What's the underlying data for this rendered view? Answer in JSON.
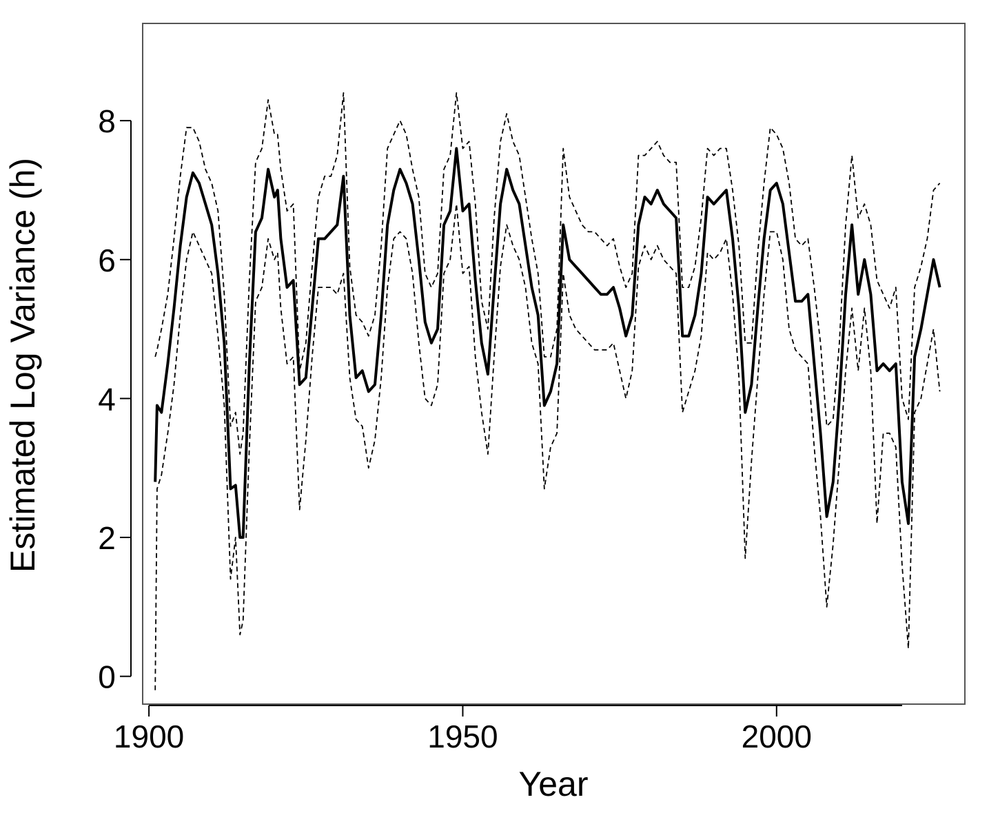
{
  "chart_data": {
    "type": "line",
    "title": "",
    "xlabel": "Year",
    "ylabel": "Estimated Log Variance (h)",
    "xlim": [
      1899,
      2030
    ],
    "ylim": [
      -0.4,
      9.4
    ],
    "xticks": [
      1900,
      1950,
      2000
    ],
    "yticks": [
      0,
      2,
      4,
      6,
      8
    ],
    "grid": false,
    "legend": "none",
    "colors": {
      "line": "#000000",
      "axis": "#000000",
      "frame": "#555555"
    },
    "series": [
      {
        "style": "solid-thick",
        "x": [
          1901,
          1901.3,
          1902,
          1903,
          1904,
          1905,
          1906,
          1907,
          1908,
          1909,
          1910,
          1911,
          1912,
          1913,
          1913.8,
          1914.5,
          1915,
          1916,
          1917,
          1918,
          1919,
          1920,
          1920.5,
          1921,
          1922,
          1923,
          1924,
          1925,
          1926,
          1927,
          1928,
          1929,
          1930,
          1931,
          1932,
          1933,
          1934,
          1935,
          1936,
          1937,
          1938,
          1939,
          1940,
          1941,
          1942,
          1943,
          1944,
          1945,
          1946,
          1947,
          1948,
          1949,
          1950,
          1951,
          1952,
          1953,
          1954,
          1955,
          1956,
          1957,
          1958,
          1959,
          1960,
          1961,
          1962,
          1963,
          1964,
          1965,
          1966,
          1967,
          1968,
          1969,
          1970,
          1971,
          1972,
          1973,
          1974,
          1975,
          1976,
          1977,
          1978,
          1979,
          1980,
          1981,
          1982,
          1983,
          1984,
          1985,
          1986,
          1987,
          1988,
          1989,
          1990,
          1991,
          1992,
          1993,
          1994,
          1995,
          1996,
          1997,
          1998,
          1999,
          2000,
          2001,
          2002,
          2003,
          2004,
          2005,
          2006,
          2007,
          2008,
          2009,
          2010,
          2011,
          2012,
          2013,
          2014,
          2015,
          2016,
          2017,
          2018,
          2019,
          2020,
          2021,
          2022,
          2023,
          2024,
          2025,
          2026
        ],
        "values": [
          2.8,
          3.9,
          3.8,
          4.5,
          5.3,
          6.2,
          6.9,
          7.25,
          7.1,
          6.8,
          6.5,
          5.8,
          4.8,
          2.7,
          2.75,
          2.0,
          2.0,
          4.5,
          6.4,
          6.6,
          7.3,
          6.9,
          7.0,
          6.3,
          5.6,
          5.7,
          4.2,
          4.3,
          5.3,
          6.3,
          6.3,
          6.4,
          6.5,
          7.2,
          5.2,
          4.3,
          4.4,
          4.1,
          4.2,
          5.2,
          6.5,
          7.0,
          7.3,
          7.1,
          6.8,
          6.0,
          5.1,
          4.8,
          5.0,
          6.5,
          6.7,
          7.6,
          6.7,
          6.8,
          5.7,
          4.8,
          4.35,
          5.6,
          6.8,
          7.3,
          7.0,
          6.8,
          6.2,
          5.6,
          5.2,
          3.9,
          4.1,
          4.5,
          6.5,
          6.0,
          5.9,
          5.8,
          5.7,
          5.6,
          5.5,
          5.5,
          5.6,
          5.3,
          4.9,
          5.2,
          6.5,
          6.9,
          6.8,
          7.0,
          6.8,
          6.7,
          6.6,
          4.9,
          4.9,
          5.2,
          5.8,
          6.9,
          6.8,
          6.9,
          7.0,
          6.3,
          5.3,
          3.8,
          4.2,
          5.3,
          6.3,
          7.0,
          7.1,
          6.8,
          6.1,
          5.4,
          5.4,
          5.5,
          4.5,
          3.5,
          2.3,
          2.8,
          4.0,
          5.5,
          6.5,
          5.5,
          6.0,
          5.5,
          4.4,
          4.5,
          4.4,
          4.5,
          2.8,
          2.2,
          4.6,
          5.0,
          5.5,
          6.0,
          5.6
        ]
      },
      {
        "style": "dashed-upper",
        "x": [
          1901,
          1901.3,
          1902,
          1903,
          1904,
          1905,
          1906,
          1907,
          1908,
          1909,
          1910,
          1911,
          1912,
          1913,
          1913.8,
          1914.5,
          1915,
          1916,
          1917,
          1918,
          1919,
          1920,
          1920.5,
          1921,
          1922,
          1923,
          1924,
          1925,
          1926,
          1927,
          1928,
          1929,
          1930,
          1931,
          1932,
          1933,
          1934,
          1935,
          1936,
          1937,
          1938,
          1939,
          1940,
          1941,
          1942,
          1943,
          1944,
          1945,
          1946,
          1947,
          1948,
          1949,
          1950,
          1951,
          1952,
          1953,
          1954,
          1955,
          1956,
          1957,
          1958,
          1959,
          1960,
          1961,
          1962,
          1963,
          1964,
          1965,
          1966,
          1967,
          1968,
          1969,
          1970,
          1971,
          1972,
          1973,
          1974,
          1975,
          1976,
          1977,
          1978,
          1979,
          1980,
          1981,
          1982,
          1983,
          1984,
          1985,
          1986,
          1987,
          1988,
          1989,
          1990,
          1991,
          1992,
          1993,
          1994,
          1995,
          1996,
          1997,
          1998,
          1999,
          2000,
          2001,
          2002,
          2003,
          2004,
          2005,
          2006,
          2007,
          2008,
          2009,
          2010,
          2011,
          2012,
          2013,
          2014,
          2015,
          2016,
          2017,
          2018,
          2019,
          2020,
          2021,
          2022,
          2023,
          2024,
          2025,
          2026
        ],
        "values": [
          4.6,
          4.7,
          5.0,
          5.5,
          6.3,
          7.2,
          7.9,
          7.9,
          7.7,
          7.3,
          7.1,
          6.7,
          5.5,
          3.6,
          3.8,
          3.2,
          3.5,
          5.7,
          7.4,
          7.6,
          8.3,
          7.8,
          7.8,
          7.3,
          6.7,
          6.8,
          4.4,
          4.8,
          5.9,
          6.9,
          7.2,
          7.2,
          7.5,
          8.4,
          5.9,
          5.2,
          5.1,
          4.9,
          5.2,
          6.2,
          7.6,
          7.8,
          8.0,
          7.8,
          7.3,
          6.9,
          5.8,
          5.6,
          5.8,
          7.3,
          7.5,
          8.4,
          7.6,
          7.7,
          6.8,
          5.4,
          5.0,
          6.6,
          7.7,
          8.1,
          7.7,
          7.5,
          6.9,
          6.3,
          5.8,
          4.6,
          4.6,
          5.0,
          7.6,
          6.9,
          6.7,
          6.5,
          6.4,
          6.4,
          6.3,
          6.2,
          6.3,
          5.9,
          5.6,
          5.8,
          7.5,
          7.5,
          7.6,
          7.7,
          7.5,
          7.4,
          7.4,
          5.6,
          5.6,
          5.9,
          6.6,
          7.6,
          7.5,
          7.6,
          7.6,
          7.0,
          6.2,
          4.8,
          4.8,
          6.1,
          7.1,
          7.9,
          7.8,
          7.6,
          7.1,
          6.3,
          6.2,
          6.3,
          5.6,
          4.8,
          3.6,
          3.7,
          4.8,
          6.5,
          7.5,
          6.6,
          6.8,
          6.5,
          5.7,
          5.5,
          5.3,
          5.6,
          4.0,
          3.7,
          5.6,
          5.9,
          6.3,
          7.0,
          7.1
        ]
      },
      {
        "style": "dashed-lower",
        "x": [
          1901,
          1901.3,
          1902,
          1903,
          1904,
          1905,
          1906,
          1907,
          1908,
          1909,
          1910,
          1911,
          1912,
          1913,
          1913.8,
          1914.5,
          1915,
          1916,
          1917,
          1918,
          1919,
          1920,
          1920.5,
          1921,
          1922,
          1923,
          1924,
          1925,
          1926,
          1927,
          1928,
          1929,
          1930,
          1931,
          1932,
          1933,
          1934,
          1935,
          1936,
          1937,
          1938,
          1939,
          1940,
          1941,
          1942,
          1943,
          1944,
          1945,
          1946,
          1947,
          1948,
          1949,
          1950,
          1951,
          1952,
          1953,
          1954,
          1955,
          1956,
          1957,
          1958,
          1959,
          1960,
          1961,
          1962,
          1963,
          1964,
          1965,
          1966,
          1967,
          1968,
          1969,
          1970,
          1971,
          1972,
          1973,
          1974,
          1975,
          1976,
          1977,
          1978,
          1979,
          1980,
          1981,
          1982,
          1983,
          1984,
          1985,
          1986,
          1987,
          1988,
          1989,
          1990,
          1991,
          1992,
          1993,
          1994,
          1995,
          1996,
          1997,
          1998,
          1999,
          2000,
          2001,
          2002,
          2003,
          2004,
          2005,
          2006,
          2007,
          2008,
          2009,
          2010,
          2011,
          2012,
          2013,
          2014,
          2015,
          2016,
          2017,
          2018,
          2019,
          2020,
          2021,
          2022,
          2023,
          2024,
          2025,
          2026
        ],
        "values": [
          -0.2,
          2.7,
          2.9,
          3.5,
          4.2,
          5.2,
          6.0,
          6.4,
          6.2,
          6.0,
          5.8,
          4.9,
          3.9,
          1.4,
          2.0,
          0.6,
          0.8,
          3.3,
          5.4,
          5.6,
          6.3,
          6.0,
          6.1,
          5.3,
          4.5,
          4.6,
          2.4,
          3.4,
          4.6,
          5.6,
          5.6,
          5.6,
          5.5,
          5.8,
          4.3,
          3.7,
          3.6,
          3.0,
          3.4,
          4.3,
          5.6,
          6.3,
          6.4,
          6.3,
          5.8,
          4.8,
          4.0,
          3.9,
          4.2,
          5.8,
          6.0,
          6.8,
          5.8,
          5.9,
          4.6,
          3.8,
          3.2,
          4.6,
          5.9,
          6.5,
          6.2,
          6.0,
          5.6,
          4.8,
          4.5,
          2.7,
          3.3,
          3.5,
          5.8,
          5.2,
          5.0,
          4.9,
          4.8,
          4.7,
          4.7,
          4.7,
          4.8,
          4.4,
          4.0,
          4.4,
          5.9,
          6.2,
          6.0,
          6.2,
          6.0,
          5.9,
          5.8,
          3.8,
          4.1,
          4.4,
          4.9,
          6.1,
          6.0,
          6.1,
          6.3,
          5.5,
          4.3,
          1.7,
          3.1,
          4.3,
          5.5,
          6.4,
          6.4,
          6.0,
          5.0,
          4.7,
          4.6,
          4.5,
          3.3,
          2.3,
          1.0,
          1.9,
          3.1,
          4.4,
          5.3,
          4.4,
          5.3,
          4.4,
          2.2,
          3.5,
          3.5,
          3.3,
          1.6,
          0.4,
          3.8,
          4.0,
          4.5,
          5.0,
          4.1
        ]
      }
    ]
  }
}
